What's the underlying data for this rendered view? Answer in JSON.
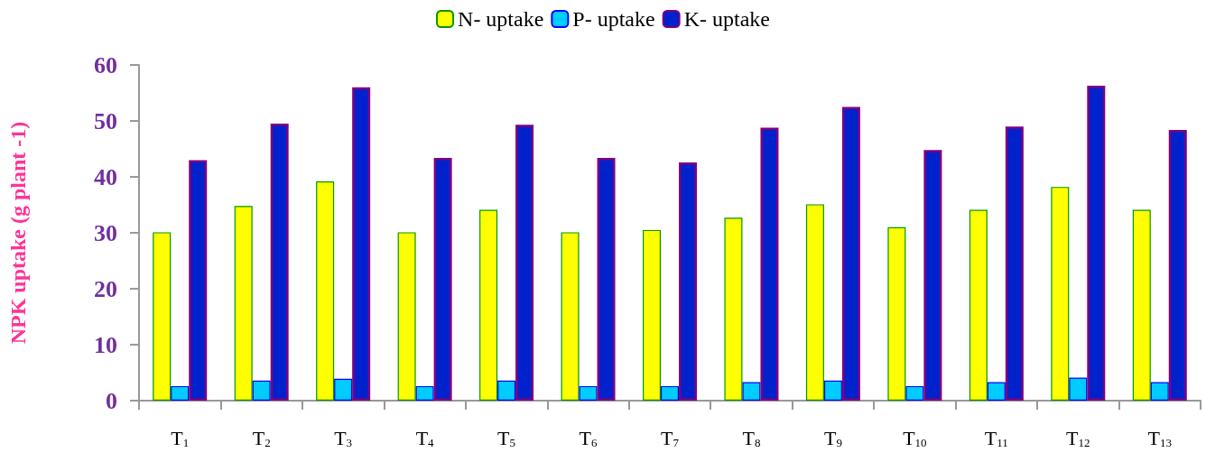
{
  "chart_data": {
    "type": "bar",
    "ylabel": "NPK uptake (g plant -1)",
    "categories": [
      "T$_{1}$",
      "T$_{2}$",
      "T$_{3}$",
      "T$_{4}$",
      "T$_{5}$",
      "T$_{6}$",
      "T$_{7}$",
      "T$_{8}$",
      "T$_{9}$",
      "T$_{10}$",
      "T$_{11}$",
      "T$_{12}$",
      "T$_{13}$"
    ],
    "series": [
      {
        "name": "N- uptake",
        "color": "#ffff00",
        "values": [
          30.1,
          34.8,
          39.2,
          30.1,
          34.1,
          30.1,
          30.5,
          32.7,
          35.1,
          31.0,
          34.1,
          38.2,
          34.1
        ]
      },
      {
        "name": "P- uptake",
        "color": "#00ccff",
        "values": [
          2.6,
          3.6,
          3.9,
          2.6,
          3.6,
          2.6,
          2.6,
          3.3,
          3.6,
          2.6,
          3.3,
          4.1,
          3.3
        ]
      },
      {
        "name": "K- uptake",
        "color": "#0022cc",
        "values": [
          43.0,
          49.5,
          56.0,
          43.4,
          49.3,
          43.4,
          42.6,
          48.8,
          52.5,
          44.8,
          49.0,
          56.3,
          48.4
        ]
      }
    ],
    "ylim": [
      0,
      60
    ],
    "yticks": [
      0,
      10,
      20,
      30,
      40,
      50,
      60
    ],
    "grid": false,
    "legend": "top"
  }
}
